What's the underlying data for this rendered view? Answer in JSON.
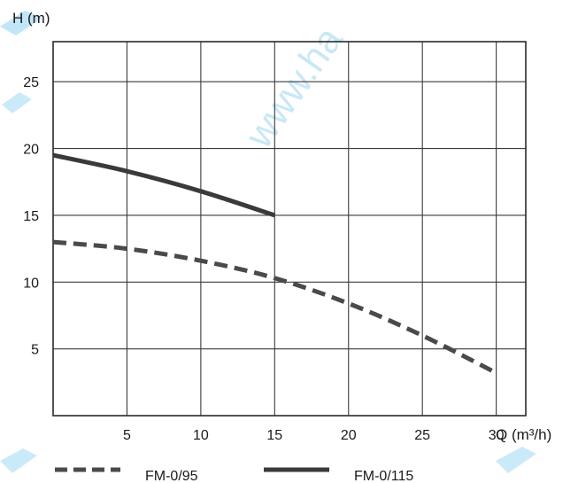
{
  "chart_data": {
    "type": "line",
    "xlabel": "Q (m³/h)",
    "ylabel": "H (m)",
    "xlim": [
      0,
      32
    ],
    "ylim": [
      0,
      28
    ],
    "x_ticks": [
      5,
      10,
      15,
      20,
      25,
      30
    ],
    "y_ticks": [
      5,
      10,
      15,
      20,
      25
    ],
    "grid": true,
    "legend_position": "bottom",
    "series": [
      {
        "name": "FM-0/95",
        "line_style": "dashed",
        "color": "#4a4a4a",
        "x": [
          0,
          5,
          10,
          15,
          20,
          25,
          30
        ],
        "y": [
          13.0,
          12.5,
          11.6,
          10.3,
          8.4,
          6.0,
          3.2
        ]
      },
      {
        "name": "FM-0/115",
        "line_style": "solid",
        "color": "#3a3a3a",
        "x": [
          0,
          5,
          10,
          15
        ],
        "y": [
          19.5,
          18.3,
          16.8,
          15.0
        ]
      }
    ]
  },
  "watermark_text": "www.ha"
}
